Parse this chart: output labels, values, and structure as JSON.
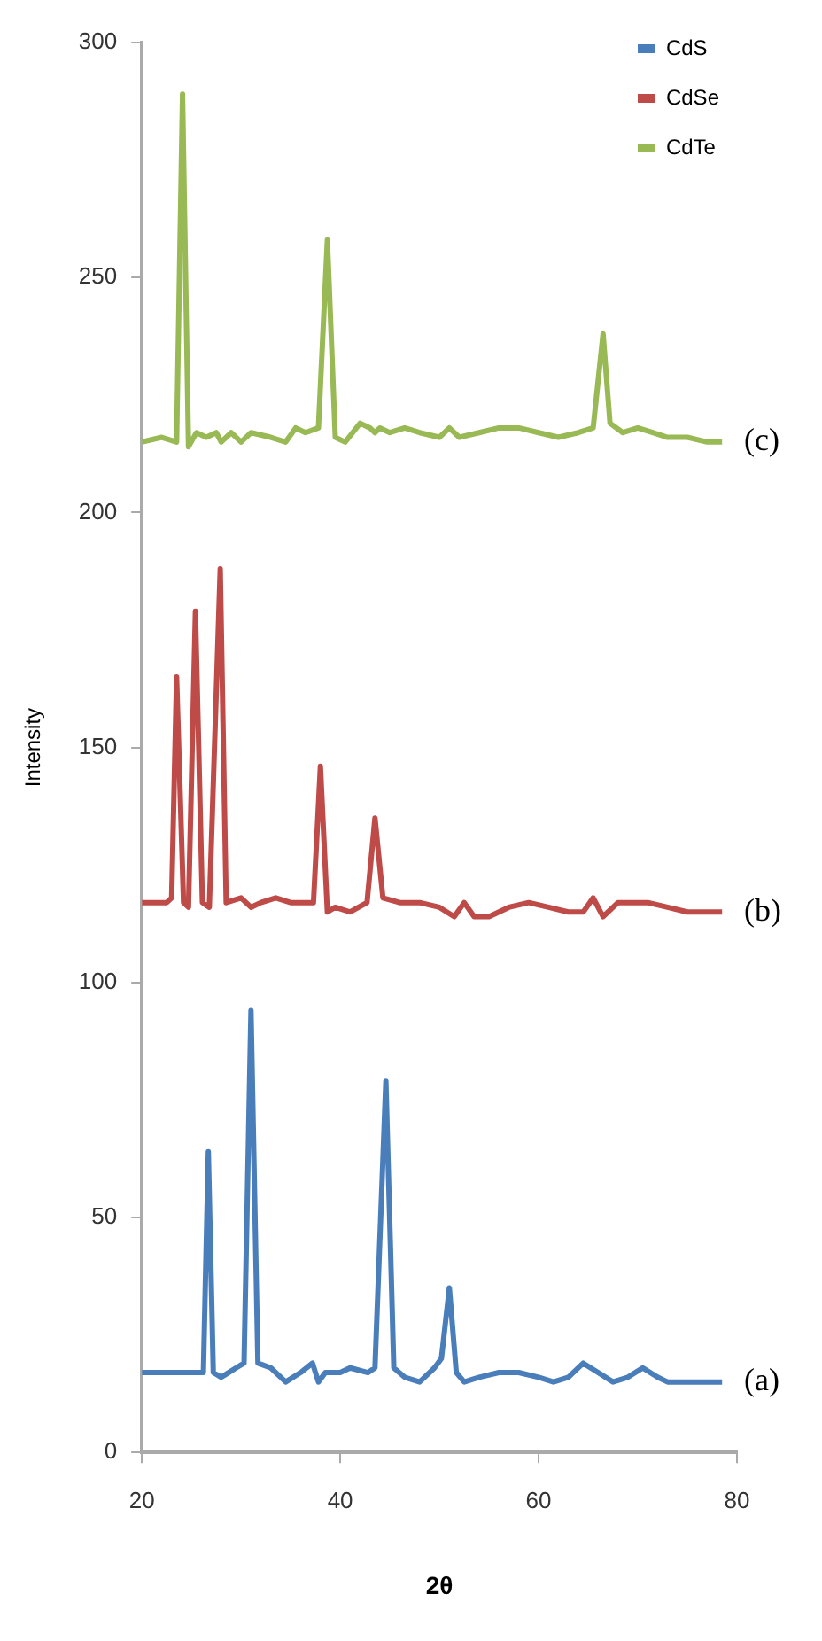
{
  "chart_data": {
    "type": "line",
    "xlabel": "2θ",
    "ylabel": "Intensity",
    "xlim": [
      20,
      80
    ],
    "xticks": [
      20,
      40,
      60,
      80
    ],
    "ylim": [
      0,
      300
    ],
    "yticks": [
      0,
      50,
      100,
      150,
      200,
      250,
      300
    ],
    "grid": false,
    "legend": "top right",
    "marker": "none",
    "line_style": "solid",
    "annotations": [
      "(a)",
      "(b)",
      "(c)"
    ],
    "series": [
      {
        "name": "CdS",
        "color": "#4a7ebb",
        "x": [
          20,
          23,
          25.5,
          26.2,
          26.7,
          27.2,
          28,
          29.5,
          30.3,
          31,
          31.7,
          33,
          34.5,
          36,
          37.2,
          37.8,
          38.5,
          40,
          41,
          42.8,
          43.5,
          44.6,
          45.4,
          46.5,
          48,
          49.5,
          50.2,
          51,
          51.7,
          52.5,
          54,
          56,
          58,
          60,
          61.5,
          63,
          64.5,
          66,
          67.5,
          69,
          70.5,
          72,
          73,
          75,
          78.5
        ],
        "values": [
          17,
          17,
          17,
          17,
          64,
          17,
          16,
          18,
          19,
          94,
          19,
          18,
          15,
          17,
          19,
          15,
          17,
          17,
          18,
          17,
          18,
          79,
          18,
          16,
          15,
          18,
          20,
          35,
          17,
          15,
          16,
          17,
          17,
          16,
          15,
          16,
          19,
          17,
          15,
          16,
          18,
          16,
          15,
          15,
          15
        ]
      },
      {
        "name": "CdSe",
        "color": "#be4b48",
        "x": [
          20,
          22.5,
          23,
          23.5,
          24.2,
          24.7,
          25.4,
          26.1,
          26.8,
          27.9,
          28.5,
          30,
          31,
          32,
          33.5,
          35,
          36.5,
          37.3,
          38,
          38.7,
          39.5,
          41,
          42.7,
          43.5,
          44.3,
          46,
          48,
          50,
          51.5,
          52.5,
          53.5,
          55,
          57,
          59,
          61,
          63,
          64.5,
          65.5,
          66.5,
          68,
          71,
          73,
          75,
          78.5
        ],
        "values": [
          117,
          117,
          118,
          165,
          117,
          116,
          179,
          117,
          116,
          188,
          117,
          118,
          116,
          117,
          118,
          117,
          117,
          117,
          146,
          115,
          116,
          115,
          117,
          135,
          118,
          117,
          117,
          116,
          114,
          117,
          114,
          114,
          116,
          117,
          116,
          115,
          115,
          118,
          114,
          117,
          117,
          116,
          115,
          115
        ]
      },
      {
        "name": "CdTe",
        "color": "#98b954",
        "x": [
          20,
          22,
          23.5,
          24.1,
          24.7,
          25.5,
          26.5,
          27.5,
          28,
          29,
          30,
          31,
          33,
          34.5,
          35.5,
          36.5,
          37.8,
          38.7,
          39.5,
          40.5,
          42,
          43,
          43.5,
          44,
          45,
          46.5,
          48,
          50,
          51,
          52,
          54,
          56,
          58,
          60,
          62,
          64,
          65.5,
          66.5,
          67.2,
          68.5,
          70,
          71.5,
          73,
          75,
          77,
          78.5
        ],
        "values": [
          215,
          216,
          215,
          289,
          214,
          217,
          216,
          217,
          215,
          217,
          215,
          217,
          216,
          215,
          218,
          217,
          218,
          258,
          216,
          215,
          219,
          218,
          217,
          218,
          217,
          218,
          217,
          216,
          218,
          216,
          217,
          218,
          218,
          217,
          216,
          217,
          218,
          238,
          219,
          217,
          218,
          217,
          216,
          216,
          215,
          215
        ]
      }
    ]
  }
}
